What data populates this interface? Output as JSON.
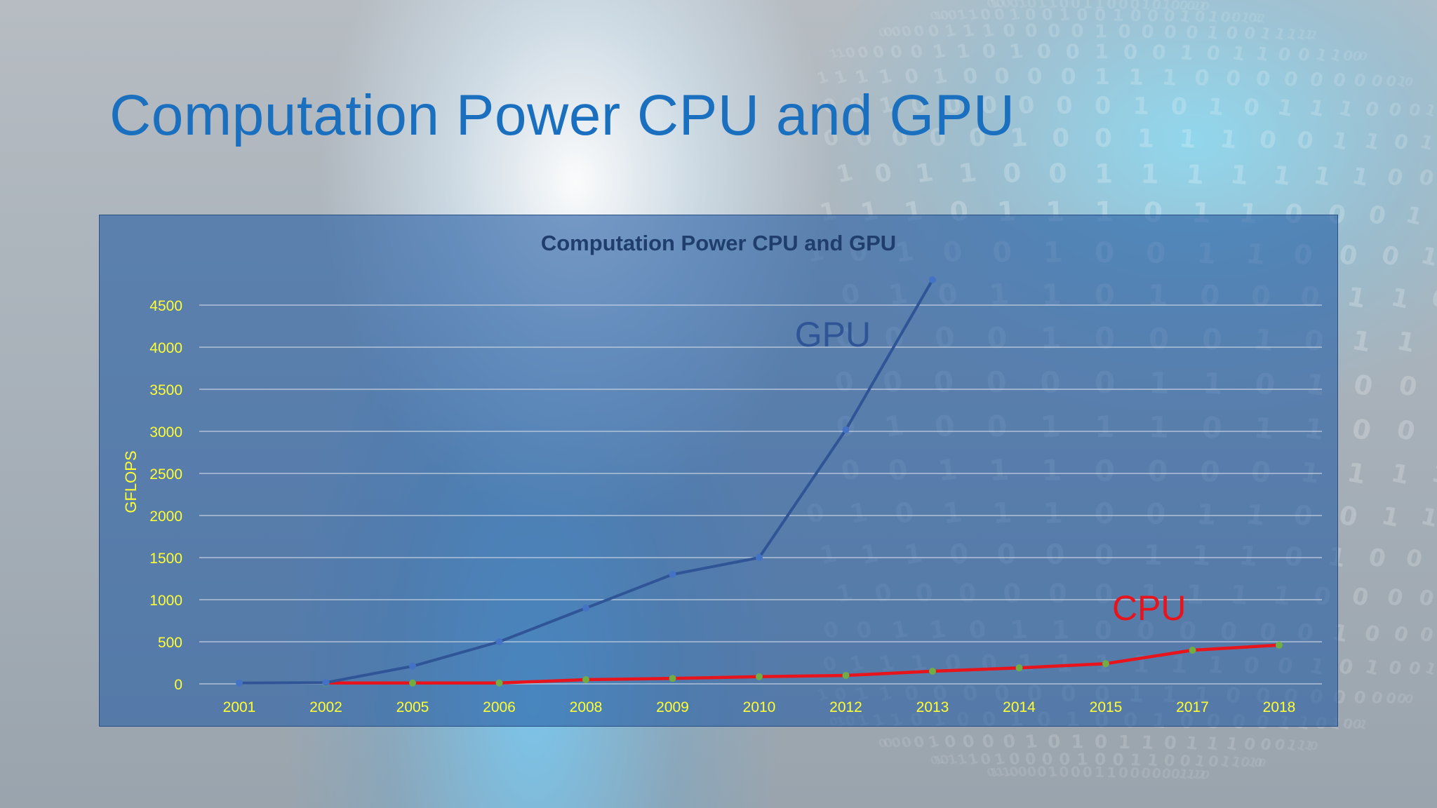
{
  "slide": {
    "title": "Computation Power CPU and GPU"
  },
  "chart_data": {
    "type": "line",
    "title": "Computation Power CPU and GPU",
    "xlabel": "",
    "ylabel": "GFLOPS",
    "categories": [
      "2001",
      "2002",
      "2005",
      "2006",
      "2008",
      "2009",
      "2010",
      "2012",
      "2013",
      "2014",
      "2015",
      "2017",
      "2018"
    ],
    "ylim": [
      0,
      4500
    ],
    "yticks": [
      0,
      500,
      1000,
      1500,
      2000,
      2500,
      3000,
      3500,
      4000,
      4500
    ],
    "grid": true,
    "legend": "none",
    "series": [
      {
        "name": "GPU",
        "color": "#2f5597",
        "marker_color": "#4472c4",
        "values": [
          10,
          15,
          210,
          500,
          900,
          1300,
          1500,
          3020,
          4800,
          null,
          null,
          null,
          null
        ]
      },
      {
        "name": "CPU",
        "color": "#e8141c",
        "marker_color": "#70ad47",
        "values": [
          null,
          10,
          10,
          10,
          50,
          65,
          85,
          100,
          150,
          190,
          240,
          400,
          460
        ]
      }
    ],
    "annotations": [
      {
        "text": "GPU",
        "color": "#2f5597"
      },
      {
        "text": "CPU",
        "color": "#e8141c"
      }
    ],
    "colors": {
      "tick_label": "#ffff33",
      "gridline": "#d9dee6",
      "title": "#1f3e6e"
    }
  }
}
